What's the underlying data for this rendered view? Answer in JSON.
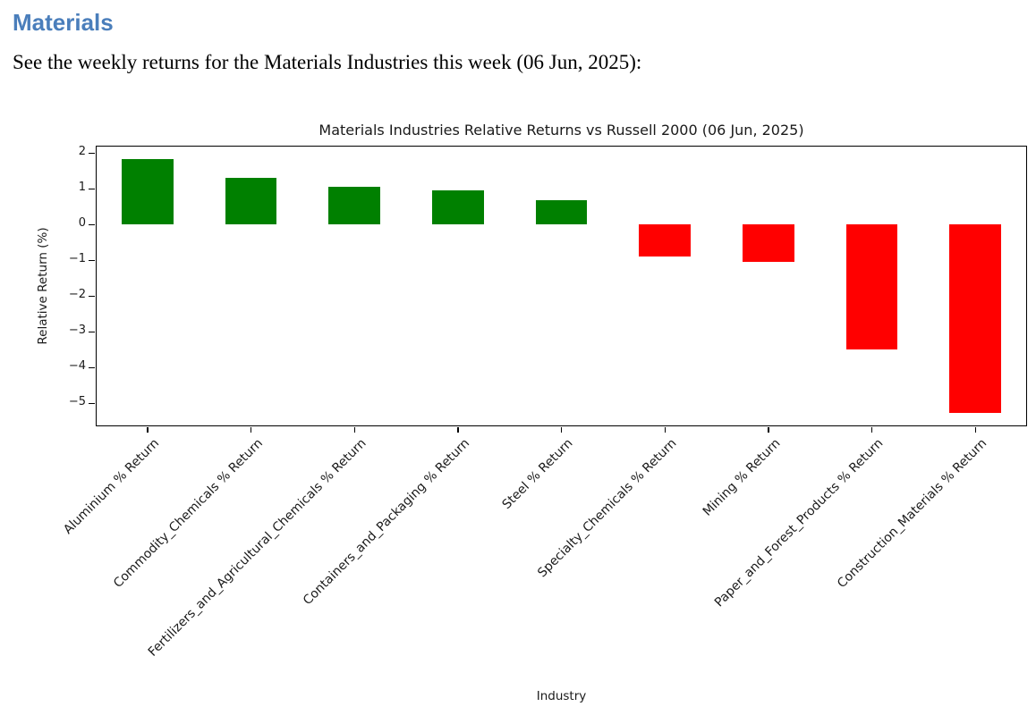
{
  "page": {
    "heading": "Materials",
    "subtitle": "See the weekly returns for the Materials Industries this week (06 Jun, 2025):"
  },
  "chart_data": {
    "type": "bar",
    "title": "Materials Industries Relative Returns vs Russell 2000 (06 Jun, 2025)",
    "xlabel": "Industry",
    "ylabel": "Relative Return (%)",
    "categories": [
      "Aluminium % Return",
      "Commodity_Chemicals % Return",
      "Fertilizers_and_Agricultural_Chemicals % Return",
      "Containers_and_Packaging % Return",
      "Steel % Return",
      "Specialty_Chemicals % Return",
      "Mining % Return",
      "Paper_and_Forest_Products % Return",
      "Construction_Materials % Return"
    ],
    "values": [
      1.83,
      1.3,
      1.06,
      0.95,
      0.68,
      -0.9,
      -1.04,
      -3.5,
      -5.27
    ],
    "yticks": [
      2,
      1,
      0,
      -1,
      -2,
      -3,
      -4,
      -5
    ],
    "ylim": [
      -5.65,
      2.2
    ],
    "positive_color": "#008000",
    "negative_color": "#ff0000",
    "grid": false,
    "legend": "none",
    "bar_width_fraction": 0.5,
    "x_tick_label_rotation_deg": 45
  },
  "colors": {
    "heading_accent": "#4a7ebb",
    "chart_text": "#1a1a1a",
    "background": "#ffffff"
  }
}
